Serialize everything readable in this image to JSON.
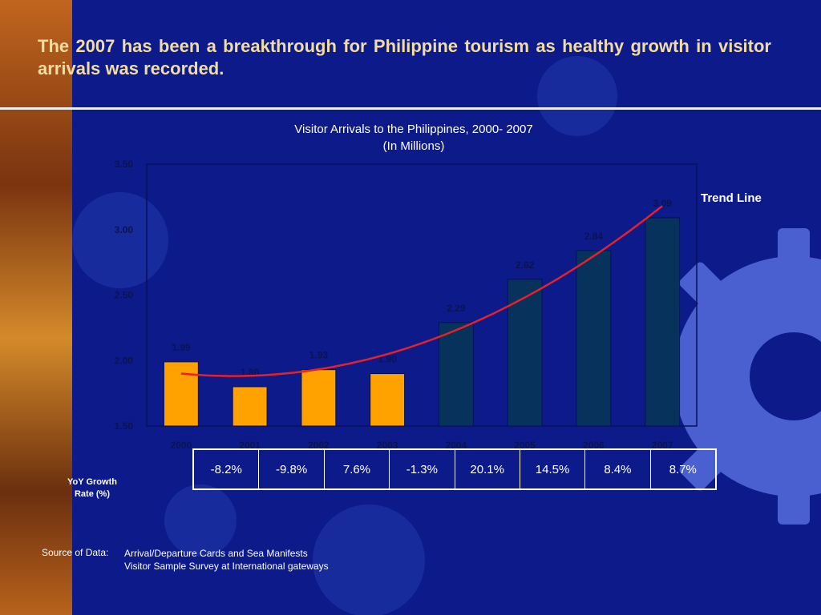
{
  "headline": "The 2007 has been a breakthrough for Philippine tourism as healthy growth in visitor arrivals was recorded.",
  "colors": {
    "background": "#0d1a8a",
    "headline": "#f3dca0",
    "bar_early": "#ffa200",
    "bar_late": "#07325c",
    "trend": "#e8202a"
  },
  "chart_data": {
    "type": "bar",
    "title": "Visitor Arrivals to the Philippines, 2000- 2007",
    "subtitle": "(In Millions)",
    "categories": [
      "2000",
      "2001",
      "2002",
      "2003",
      "2004",
      "2005",
      "2006",
      "2007"
    ],
    "values": [
      1.99,
      1.8,
      1.93,
      1.9,
      2.29,
      2.62,
      2.84,
      3.09
    ],
    "value_labels": [
      "1.99",
      "1.80",
      "1.93",
      "1.90",
      "2.29",
      "2.62",
      "2.84",
      "3.09"
    ],
    "ylim": [
      1.5,
      3.5
    ],
    "yticks": [
      "1.50",
      "2.00",
      "2.50",
      "3.00",
      "3.50"
    ],
    "trend_line": {
      "label": "Trend Line",
      "kind": "polynomial"
    },
    "xlabel": "",
    "ylabel": ""
  },
  "growth": {
    "label": "YoY Growth Rate (%)",
    "values": [
      "-8.2%",
      "-9.8%",
      "7.6%",
      "-1.3%",
      "20.1%",
      "14.5%",
      "8.4%",
      "8.7%"
    ]
  },
  "source": {
    "label": "Source of Data:",
    "lines": [
      "Arrival/Departure Cards and Sea Manifests",
      "Visitor Sample Survey at International gateways"
    ]
  }
}
